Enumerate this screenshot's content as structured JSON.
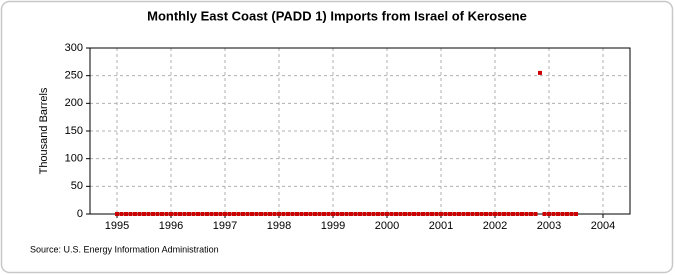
{
  "chart_data": {
    "type": "scatter",
    "title": "Monthly East Coast (PADD 1) Imports from Israel of Kerosene",
    "y_label": "Thousand Barrels",
    "source": "Source: U.S. Energy Information Administration",
    "color": "#cc0000",
    "grid": true,
    "x": [
      1995,
      1995.083,
      1995.167,
      1995.25,
      1995.333,
      1995.417,
      1995.5,
      1995.583,
      1995.667,
      1995.75,
      1995.833,
      1995.917,
      1996,
      1996.083,
      1996.167,
      1996.25,
      1996.333,
      1996.417,
      1996.5,
      1996.583,
      1996.667,
      1996.75,
      1996.833,
      1996.917,
      1997,
      1997.083,
      1997.167,
      1997.25,
      1997.333,
      1997.417,
      1997.5,
      1997.583,
      1997.667,
      1997.75,
      1997.833,
      1997.917,
      1998,
      1998.083,
      1998.167,
      1998.25,
      1998.333,
      1998.417,
      1998.5,
      1998.583,
      1998.667,
      1998.75,
      1998.833,
      1998.917,
      1999,
      1999.083,
      1999.167,
      1999.25,
      1999.333,
      1999.417,
      1999.5,
      1999.583,
      1999.667,
      1999.75,
      1999.833,
      1999.917,
      2000,
      2000.083,
      2000.167,
      2000.25,
      2000.333,
      2000.417,
      2000.5,
      2000.583,
      2000.667,
      2000.75,
      2000.833,
      2000.917,
      2001,
      2001.083,
      2001.167,
      2001.25,
      2001.333,
      2001.417,
      2001.5,
      2001.583,
      2001.667,
      2001.75,
      2001.833,
      2001.917,
      2002,
      2002.083,
      2002.167,
      2002.25,
      2002.333,
      2002.417,
      2002.5,
      2002.583,
      2002.667,
      2002.75,
      2002.833,
      2002.917,
      2003,
      2003.083,
      2003.167,
      2003.25,
      2003.333,
      2003.417,
      2003.5
    ],
    "values": [
      0,
      0,
      0,
      0,
      0,
      0,
      0,
      0,
      0,
      0,
      0,
      0,
      0,
      0,
      0,
      0,
      0,
      0,
      0,
      0,
      0,
      0,
      0,
      0,
      0,
      0,
      0,
      0,
      0,
      0,
      0,
      0,
      0,
      0,
      0,
      0,
      0,
      0,
      0,
      0,
      0,
      0,
      0,
      0,
      0,
      0,
      0,
      0,
      0,
      0,
      0,
      0,
      0,
      0,
      0,
      0,
      0,
      0,
      0,
      0,
      0,
      0,
      0,
      0,
      0,
      0,
      0,
      0,
      0,
      0,
      0,
      0,
      0,
      0,
      0,
      0,
      0,
      0,
      0,
      0,
      0,
      0,
      0,
      0,
      0,
      0,
      0,
      0,
      0,
      0,
      0,
      0,
      0,
      0,
      255,
      0,
      0,
      0,
      0,
      0,
      0,
      0,
      0
    ],
    "xlim": [
      1994.5,
      2004.5
    ],
    "xticks": [
      1995,
      1996,
      1997,
      1998,
      1999,
      2000,
      2001,
      2002,
      2003,
      2004
    ],
    "ylim": [
      0,
      300
    ],
    "yticks": [
      0,
      50,
      100,
      150,
      200,
      250,
      300
    ]
  }
}
